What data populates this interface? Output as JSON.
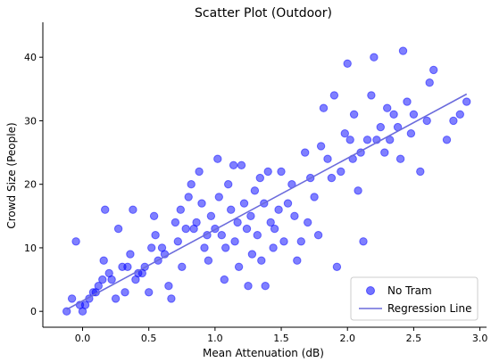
{
  "chart_data": {
    "type": "scatter",
    "title": "Scatter Plot (Outdoor)",
    "xlabel": "Mean Attenuation (dB)",
    "ylabel": "Crowd Size (People)",
    "xlim": [
      -0.3,
      3.05
    ],
    "ylim": [
      -2.5,
      45.5
    ],
    "x_ticks": [
      0.0,
      0.5,
      1.0,
      1.5,
      2.0,
      2.5,
      3.0
    ],
    "x_tick_labels": [
      "0.0",
      "0.5",
      "1.0",
      "1.5",
      "2.0",
      "2.5",
      "3.0"
    ],
    "y_ticks": [
      0,
      10,
      20,
      30,
      40
    ],
    "y_tick_labels": [
      "0",
      "10",
      "20",
      "30",
      "40"
    ],
    "grid": false,
    "legend_position": "bottom-right",
    "colors": {
      "points": "#0000ff",
      "line": "#6b6bdc"
    },
    "series": [
      {
        "name": "No Tram",
        "kind": "scatter",
        "points": [
          [
            -0.12,
            0
          ],
          [
            -0.08,
            2
          ],
          [
            -0.05,
            11
          ],
          [
            -0.02,
            1
          ],
          [
            0.0,
            0
          ],
          [
            0.02,
            1
          ],
          [
            0.05,
            2
          ],
          [
            0.08,
            3
          ],
          [
            0.1,
            3
          ],
          [
            0.12,
            4
          ],
          [
            0.15,
            5
          ],
          [
            0.16,
            8
          ],
          [
            0.17,
            16
          ],
          [
            0.2,
            6
          ],
          [
            0.22,
            5
          ],
          [
            0.25,
            2
          ],
          [
            0.27,
            13
          ],
          [
            0.3,
            7
          ],
          [
            0.32,
            3
          ],
          [
            0.34,
            7
          ],
          [
            0.36,
            9
          ],
          [
            0.38,
            16
          ],
          [
            0.4,
            5
          ],
          [
            0.42,
            6
          ],
          [
            0.45,
            6
          ],
          [
            0.47,
            7
          ],
          [
            0.5,
            3
          ],
          [
            0.52,
            10
          ],
          [
            0.54,
            15
          ],
          [
            0.55,
            12
          ],
          [
            0.57,
            8
          ],
          [
            0.6,
            10
          ],
          [
            0.62,
            9
          ],
          [
            0.65,
            4
          ],
          [
            0.67,
            2
          ],
          [
            0.7,
            14
          ],
          [
            0.72,
            11
          ],
          [
            0.74,
            16
          ],
          [
            0.75,
            7
          ],
          [
            0.78,
            13
          ],
          [
            0.8,
            18
          ],
          [
            0.82,
            20
          ],
          [
            0.84,
            13
          ],
          [
            0.86,
            14
          ],
          [
            0.88,
            22
          ],
          [
            0.9,
            17
          ],
          [
            0.92,
            10
          ],
          [
            0.94,
            12
          ],
          [
            0.95,
            8
          ],
          [
            0.97,
            15
          ],
          [
            1.0,
            13
          ],
          [
            1.02,
            24
          ],
          [
            1.03,
            18
          ],
          [
            1.05,
            12
          ],
          [
            1.07,
            5
          ],
          [
            1.08,
            10
          ],
          [
            1.1,
            20
          ],
          [
            1.12,
            16
          ],
          [
            1.14,
            23
          ],
          [
            1.15,
            11
          ],
          [
            1.17,
            14
          ],
          [
            1.18,
            7
          ],
          [
            1.2,
            23
          ],
          [
            1.22,
            17
          ],
          [
            1.24,
            13
          ],
          [
            1.25,
            4
          ],
          [
            1.27,
            15
          ],
          [
            1.28,
            9
          ],
          [
            1.3,
            19
          ],
          [
            1.32,
            12
          ],
          [
            1.34,
            21
          ],
          [
            1.35,
            8
          ],
          [
            1.37,
            17
          ],
          [
            1.38,
            4
          ],
          [
            1.4,
            22
          ],
          [
            1.42,
            14
          ],
          [
            1.44,
            10
          ],
          [
            1.45,
            13
          ],
          [
            1.48,
            16
          ],
          [
            1.5,
            22
          ],
          [
            1.52,
            11
          ],
          [
            1.55,
            17
          ],
          [
            1.58,
            20
          ],
          [
            1.6,
            15
          ],
          [
            1.62,
            8
          ],
          [
            1.65,
            11
          ],
          [
            1.68,
            25
          ],
          [
            1.7,
            14
          ],
          [
            1.72,
            21
          ],
          [
            1.75,
            18
          ],
          [
            1.78,
            12
          ],
          [
            1.8,
            26
          ],
          [
            1.82,
            32
          ],
          [
            1.85,
            24
          ],
          [
            1.88,
            21
          ],
          [
            1.9,
            34
          ],
          [
            1.92,
            7
          ],
          [
            1.95,
            22
          ],
          [
            1.98,
            28
          ],
          [
            2.0,
            39
          ],
          [
            2.02,
            27
          ],
          [
            2.04,
            24
          ],
          [
            2.05,
            31
          ],
          [
            2.08,
            19
          ],
          [
            2.1,
            25
          ],
          [
            2.12,
            11
          ],
          [
            2.15,
            27
          ],
          [
            2.18,
            34
          ],
          [
            2.2,
            40
          ],
          [
            2.22,
            27
          ],
          [
            2.25,
            29
          ],
          [
            2.28,
            25
          ],
          [
            2.3,
            32
          ],
          [
            2.32,
            27
          ],
          [
            2.35,
            31
          ],
          [
            2.38,
            29
          ],
          [
            2.4,
            24
          ],
          [
            2.42,
            41
          ],
          [
            2.45,
            33
          ],
          [
            2.48,
            28
          ],
          [
            2.5,
            31
          ],
          [
            2.55,
            22
          ],
          [
            2.6,
            30
          ],
          [
            2.62,
            36
          ],
          [
            2.65,
            38
          ],
          [
            2.75,
            27
          ],
          [
            2.8,
            30
          ],
          [
            2.85,
            31
          ],
          [
            2.9,
            33
          ]
        ]
      },
      {
        "name": "Regression Line",
        "kind": "line",
        "points": [
          [
            -0.12,
            0.3
          ],
          [
            2.9,
            34.2
          ]
        ]
      }
    ]
  }
}
